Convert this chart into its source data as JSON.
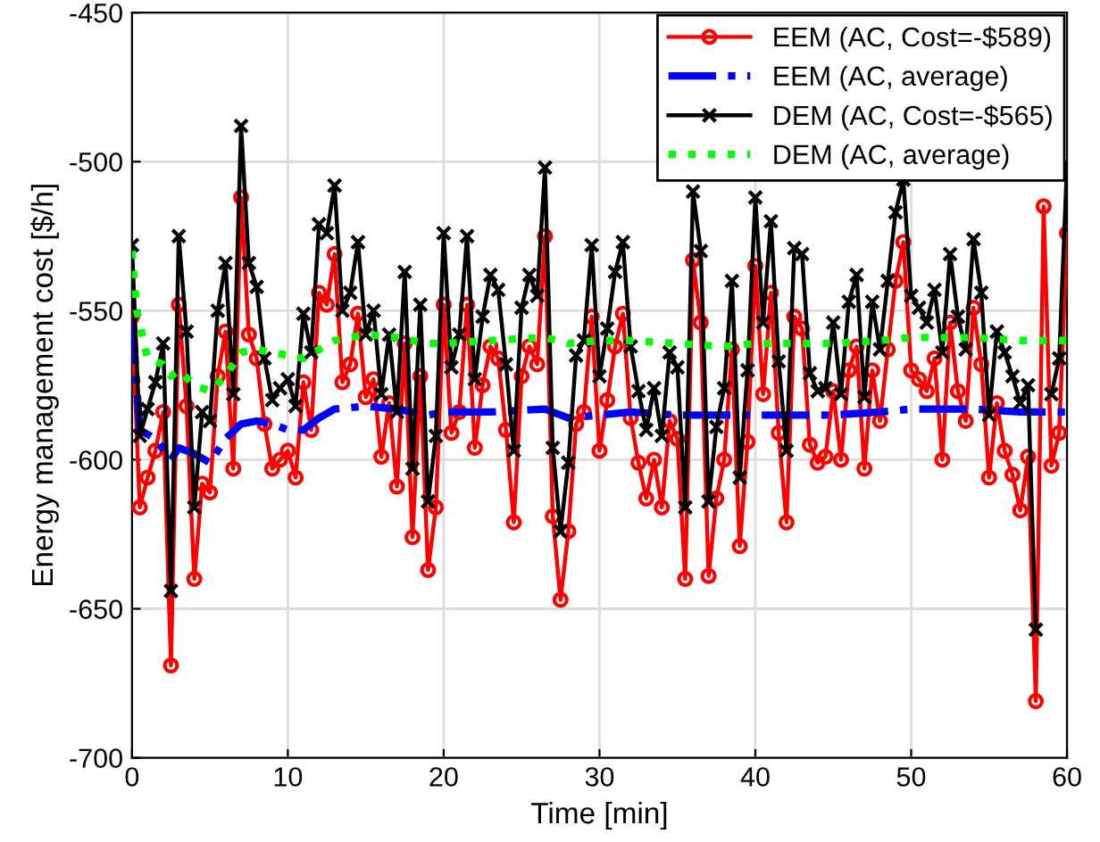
{
  "chart_data": {
    "type": "line",
    "xlabel": "Time [min]",
    "ylabel": "Energy management cost [$/h]",
    "x": [
      0,
      0.5,
      1,
      1.5,
      2,
      2.5,
      3,
      3.5,
      4,
      4.5,
      5,
      5.5,
      6,
      6.5,
      7,
      7.5,
      8,
      8.5,
      9,
      9.5,
      10,
      10.5,
      11,
      11.5,
      12,
      12.5,
      13,
      13.5,
      14,
      14.5,
      15,
      15.5,
      16,
      16.5,
      17,
      17.5,
      18,
      18.5,
      19,
      19.5,
      20,
      20.5,
      21,
      21.5,
      22,
      22.5,
      23,
      23.5,
      24,
      24.5,
      25,
      25.5,
      26,
      26.5,
      27,
      27.5,
      28,
      28.5,
      29,
      29.5,
      30,
      30.5,
      31,
      31.5,
      32,
      32.5,
      33,
      33.5,
      34,
      34.5,
      35,
      35.5,
      36,
      36.5,
      37,
      37.5,
      38,
      38.5,
      39,
      39.5,
      40,
      40.5,
      41,
      41.5,
      42,
      42.5,
      43,
      43.5,
      44,
      44.5,
      45,
      45.5,
      46,
      46.5,
      47,
      47.5,
      48,
      48.5,
      49,
      49.5,
      50,
      50.5,
      51,
      51.5,
      52,
      52.5,
      53,
      53.5,
      54,
      54.5,
      55,
      55.5,
      56,
      56.5,
      57,
      57.5,
      58,
      58.5,
      59,
      59.5,
      60
    ],
    "series": [
      {
        "name": "EEM (AC, Cost=-$589)",
        "color": "#ff0000",
        "marker": "circle",
        "line_style": "solid",
        "values": [
          -552,
          -616,
          -606,
          -597,
          -584,
          -669,
          -548,
          -582,
          -640,
          -608,
          -611,
          -572,
          -557,
          -603,
          -512,
          -558,
          -566,
          -588,
          -603,
          -600,
          -597,
          -606,
          -574,
          -590,
          -544,
          -548,
          -531,
          -574,
          -568,
          -551,
          -579,
          -573,
          -599,
          -581,
          -609,
          -561,
          -626,
          -572,
          -637,
          -616,
          -548,
          -591,
          -584,
          -548,
          -596,
          -575,
          -562,
          -566,
          -590,
          -621,
          -572,
          -562,
          -568,
          -525,
          -619,
          -647,
          -624,
          -588,
          -584,
          -552,
          -597,
          -580,
          -562,
          -551,
          -586,
          -601,
          -613,
          -600,
          -616,
          -587,
          -593,
          -640,
          -533,
          -554,
          -639,
          -613,
          -600,
          -563,
          -629,
          -594,
          -535,
          -578,
          -544,
          -591,
          -621,
          -552,
          -556,
          -595,
          -601,
          -599,
          -577,
          -600,
          -570,
          -562,
          -603,
          -570,
          -587,
          -563,
          -540,
          -527,
          -570,
          -573,
          -577,
          -566,
          -600,
          -554,
          -577,
          -587,
          -549,
          -568,
          -606,
          -581,
          -597,
          -605,
          -617,
          -599,
          -681,
          -515,
          -602,
          -591,
          -524
        ]
      },
      {
        "name": "EEM (AC, average)",
        "color": "#0000ff",
        "marker": "none",
        "line_style": "dashdot",
        "x": [
          0,
          0.5,
          1.5,
          2.5,
          3,
          4,
          5,
          6,
          7,
          8,
          9,
          10,
          11,
          12,
          13,
          15,
          17,
          19,
          20,
          23,
          26.5,
          28,
          30,
          32,
          35,
          38,
          40,
          45,
          48,
          50,
          54,
          57,
          60
        ],
        "values": [
          -552,
          -590,
          -593,
          -600,
          -596,
          -598,
          -601,
          -593,
          -588,
          -587,
          -588,
          -590,
          -590,
          -586,
          -583,
          -582,
          -583,
          -585,
          -584,
          -584,
          -583,
          -586,
          -585,
          -584,
          -585,
          -585,
          -585,
          -585,
          -584,
          -583,
          -583,
          -584,
          -584
        ]
      },
      {
        "name": "DEM (AC, Cost=-$565)",
        "color": "#000000",
        "marker": "cross",
        "line_style": "solid",
        "values": [
          -528,
          -592,
          -583,
          -574,
          -561,
          -644,
          -525,
          -557,
          -616,
          -584,
          -587,
          -550,
          -534,
          -578,
          -488,
          -534,
          -542,
          -566,
          -580,
          -576,
          -573,
          -582,
          -551,
          -564,
          -521,
          -524,
          -508,
          -550,
          -544,
          -527,
          -558,
          -550,
          -578,
          -558,
          -584,
          -537,
          -603,
          -548,
          -614,
          -592,
          -524,
          -569,
          -558,
          -525,
          -573,
          -552,
          -538,
          -543,
          -568,
          -597,
          -549,
          -538,
          -545,
          -502,
          -596,
          -624,
          -601,
          -565,
          -560,
          -528,
          -572,
          -556,
          -537,
          -527,
          -562,
          -577,
          -590,
          -576,
          -592,
          -564,
          -569,
          -616,
          -510,
          -530,
          -614,
          -589,
          -576,
          -540,
          -606,
          -570,
          -512,
          -554,
          -520,
          -567,
          -597,
          -529,
          -531,
          -571,
          -577,
          -576,
          -554,
          -578,
          -547,
          -538,
          -579,
          -547,
          -563,
          -540,
          -517,
          -506,
          -545,
          -549,
          -554,
          -543,
          -564,
          -531,
          -552,
          -563,
          -526,
          -544,
          -585,
          -557,
          -564,
          -572,
          -581,
          -575,
          -657,
          null,
          -578,
          -566,
          -501
        ]
      },
      {
        "name": "DEM (AC, average)",
        "color": "#00ff00",
        "marker": "none",
        "line_style": "dotted",
        "x": [
          0,
          0.3,
          1,
          2,
          2.5,
          3,
          4,
          5,
          6,
          7,
          8,
          9,
          10,
          11,
          12,
          13,
          15,
          17,
          19,
          20,
          23,
          26.5,
          28,
          30,
          32,
          35,
          38,
          40,
          45,
          48,
          50,
          54,
          57,
          60
        ],
        "values": [
          -530,
          -550,
          -566,
          -568,
          -572,
          -570,
          -575,
          -577,
          -572,
          -564,
          -563,
          -564,
          -565,
          -566,
          -563,
          -560,
          -558,
          -559,
          -561,
          -561,
          -560,
          -559,
          -561,
          -560,
          -560,
          -561,
          -562,
          -561,
          -561,
          -560,
          -559,
          -559,
          -560,
          -560
        ]
      }
    ],
    "xlim": [
      0,
      60
    ],
    "xticks": [
      0,
      10,
      20,
      30,
      40,
      50,
      60
    ],
    "ylim": [
      -700,
      -450
    ],
    "yticks": [
      -700,
      -650,
      -600,
      -550,
      -500,
      -450
    ],
    "grid": true,
    "legend": "top right"
  }
}
